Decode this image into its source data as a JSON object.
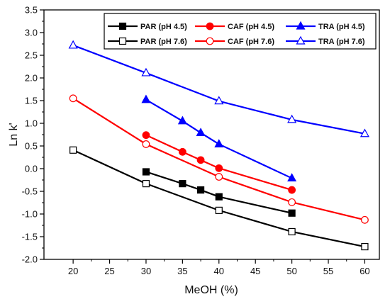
{
  "chart_data": {
    "type": "line",
    "title": "",
    "xlabel": "MeOH (%)",
    "ylabel": "Ln k'",
    "xlim": [
      16,
      62
    ],
    "ylim": [
      -2.0,
      3.5
    ],
    "xticks": [
      20,
      25,
      30,
      35,
      40,
      45,
      50,
      55,
      60
    ],
    "yticks": [
      -2.0,
      -1.5,
      -1.0,
      -0.5,
      0.0,
      0.5,
      1.0,
      1.5,
      2.0,
      2.5,
      3.0,
      3.5
    ],
    "grid": false,
    "legend_position": "top-right",
    "series": [
      {
        "name": "PAR (pH 4.5)",
        "color": "#000000",
        "marker": "square",
        "filled": true,
        "x": [
          30,
          35,
          37.5,
          40,
          50
        ],
        "y": [
          -0.07,
          -0.33,
          -0.47,
          -0.62,
          -0.98
        ]
      },
      {
        "name": "CAF (pH 4.5)",
        "color": "#ff0000",
        "marker": "circle",
        "filled": true,
        "x": [
          30,
          35,
          37.5,
          40,
          50
        ],
        "y": [
          0.74,
          0.37,
          0.19,
          0.01,
          -0.47
        ]
      },
      {
        "name": "TRA  (pH 4.5)",
        "color": "#0000ff",
        "marker": "triangle",
        "filled": true,
        "x": [
          30,
          35,
          37.5,
          40,
          50
        ],
        "y": [
          1.52,
          1.05,
          0.79,
          0.54,
          -0.21
        ]
      },
      {
        "name": "PAR (pH 7.6)",
        "color": "#000000",
        "marker": "square",
        "filled": false,
        "x": [
          20,
          30,
          40,
          50,
          60
        ],
        "y": [
          0.41,
          -0.33,
          -0.92,
          -1.39,
          -1.72
        ]
      },
      {
        "name": "CAF (pH 7.6)",
        "color": "#ff0000",
        "marker": "circle",
        "filled": false,
        "x": [
          20,
          30,
          40,
          50,
          60
        ],
        "y": [
          1.55,
          0.54,
          -0.18,
          -0.74,
          -1.13
        ]
      },
      {
        "name": "TRA (pH 7.6)",
        "color": "#0000ff",
        "marker": "triangle",
        "filled": false,
        "x": [
          20,
          30,
          40,
          50,
          60
        ],
        "y": [
          2.72,
          2.11,
          1.49,
          1.08,
          0.77
        ]
      }
    ]
  }
}
